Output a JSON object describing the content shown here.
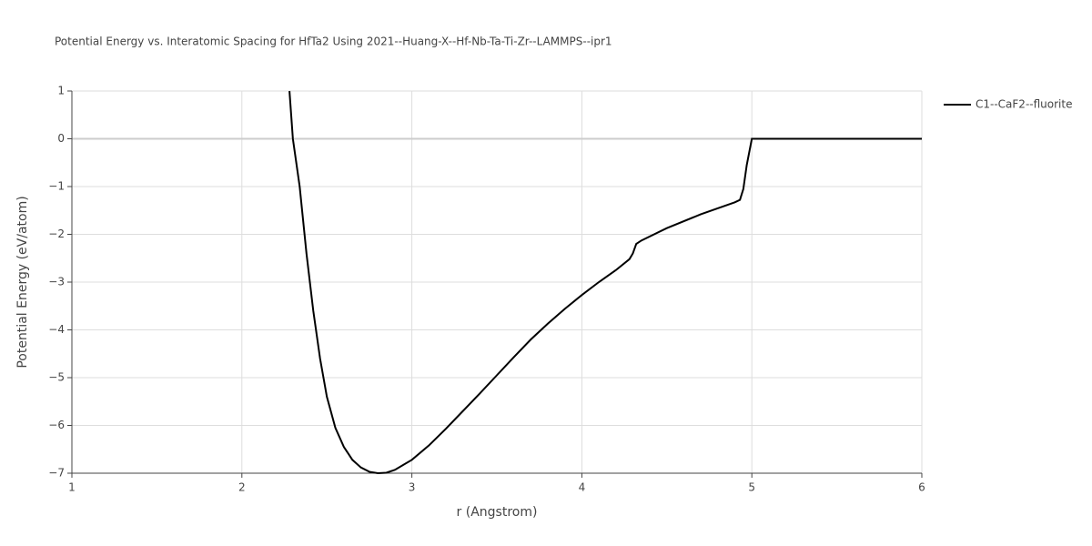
{
  "chart_data": {
    "type": "line",
    "title": "Potential Energy vs. Interatomic Spacing for HfTa2 Using 2021--Huang-X--Hf-Nb-Ta-Ti-Zr--LAMMPS--ipr1",
    "x_label": "r (Angstrom)",
    "y_label": "Potential Energy (eV/atom)",
    "xlim": [
      1,
      6
    ],
    "ylim": [
      -7,
      1
    ],
    "xticks": [
      1,
      2,
      3,
      4,
      5,
      6
    ],
    "yticks": [
      1,
      0,
      {
        "value": -1,
        "label": "−1"
      },
      {
        "value": -2,
        "label": "−2"
      },
      {
        "value": -3,
        "label": "−3"
      },
      {
        "value": -4,
        "label": "−4"
      },
      {
        "value": -5,
        "label": "−5"
      },
      {
        "value": -6,
        "label": "−6"
      },
      {
        "value": -7,
        "label": "−7"
      }
    ],
    "grid": true,
    "legend_position": "top-right",
    "x": [
      2.28,
      2.3,
      2.34,
      2.38,
      2.42,
      2.46,
      2.5,
      2.55,
      2.6,
      2.65,
      2.7,
      2.75,
      2.8,
      2.85,
      2.9,
      3.0,
      3.1,
      3.2,
      3.3,
      3.4,
      3.5,
      3.6,
      3.7,
      3.8,
      3.9,
      4.0,
      4.1,
      4.2,
      4.28,
      4.3,
      4.32,
      4.35,
      4.5,
      4.7,
      4.9,
      4.93,
      4.95,
      4.97,
      5.0,
      6.0
    ],
    "series": [
      {
        "name": "C1--CaF2--fluorite",
        "color": "#000000",
        "values": [
          1,
          0,
          -1,
          -2.4,
          -3.6,
          -4.6,
          -5.4,
          -6.05,
          -6.45,
          -6.72,
          -6.88,
          -6.97,
          -7.0,
          -6.99,
          -6.93,
          -6.72,
          -6.42,
          -6.07,
          -5.7,
          -5.33,
          -4.95,
          -4.57,
          -4.2,
          -3.87,
          -3.56,
          -3.27,
          -3.0,
          -2.75,
          -2.52,
          -2.4,
          -2.2,
          -2.13,
          -1.87,
          -1.58,
          -1.33,
          -1.28,
          -1.05,
          -0.55,
          0,
          0
        ]
      }
    ]
  }
}
